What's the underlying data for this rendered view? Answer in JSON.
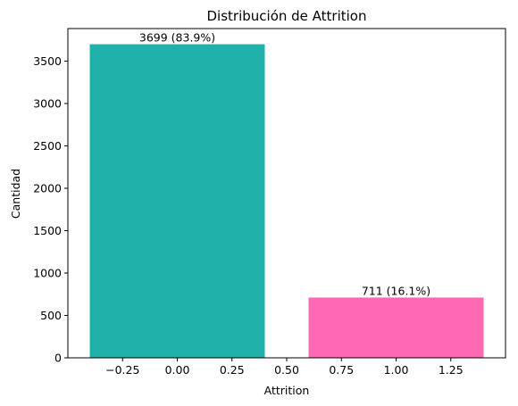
{
  "chart_data": {
    "type": "bar",
    "title": "Distribución de Attrition",
    "xlabel": "Attrition",
    "ylabel": "Cantidad",
    "x": [
      0,
      1
    ],
    "values": [
      3699,
      711
    ],
    "bar_labels": [
      "3699 (83.9%)",
      "711 (16.1%)"
    ],
    "colors": [
      "#20b2aa",
      "#ff69b4"
    ],
    "xlim": [
      -0.5,
      1.5
    ],
    "ylim": [
      0,
      3884
    ],
    "xticks": [
      -0.25,
      0.0,
      0.25,
      0.5,
      0.75,
      1.0,
      1.25
    ],
    "xtick_labels": [
      "−0.25",
      "0.00",
      "0.25",
      "0.50",
      "0.75",
      "1.00",
      "1.25"
    ],
    "yticks": [
      0,
      500,
      1000,
      1500,
      2000,
      2500,
      3000,
      3500
    ],
    "ytick_labels": [
      "0",
      "500",
      "1000",
      "1500",
      "2000",
      "2500",
      "3000",
      "3500"
    ],
    "grid": false,
    "legend": "none"
  }
}
